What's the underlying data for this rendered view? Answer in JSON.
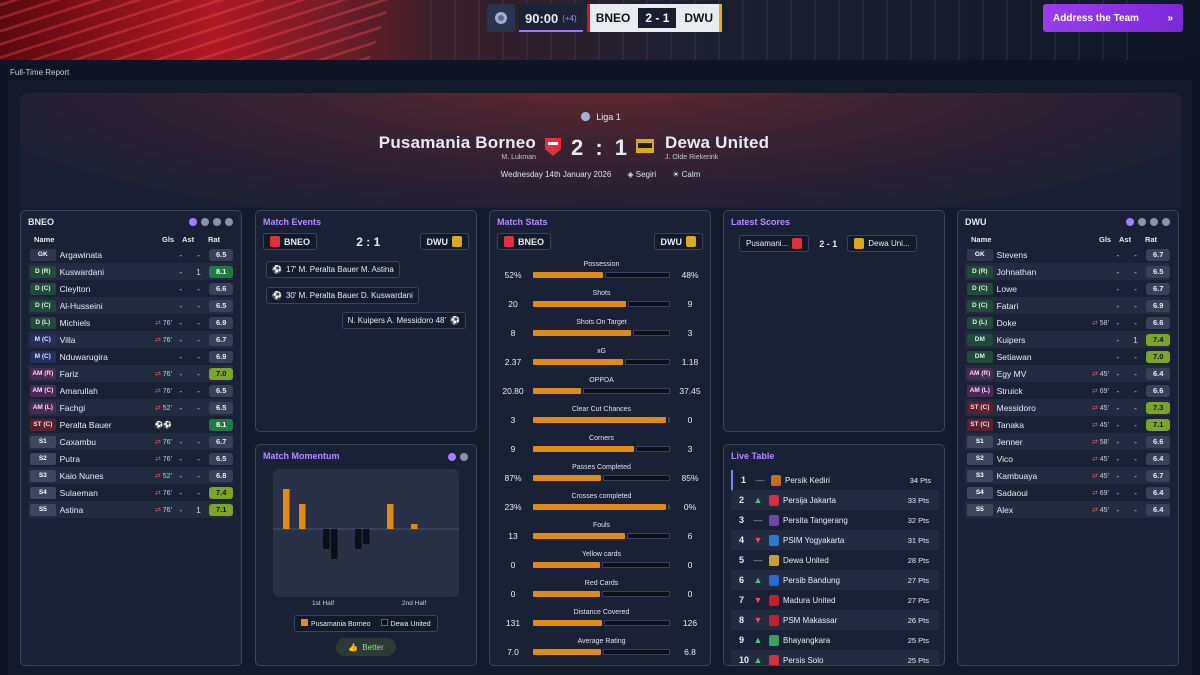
{
  "topbar": {
    "clock": "90:00",
    "added": "(+4)",
    "home_abbr": "BNEO",
    "score": "2 - 1",
    "away_abbr": "DWU",
    "action_button": "Address the Team"
  },
  "page_title": "Full-Time Report",
  "header": {
    "competition": "Liga 1",
    "home_team": "Pusamania Borneo",
    "home_manager": "M. Lukman",
    "score": "2 : 1",
    "away_team": "Dewa United",
    "away_manager": "J. Olde Riekerink",
    "date": "Wednesday 14th January 2026",
    "stadium": "Segiri",
    "weather": "Calm"
  },
  "home_panel": {
    "title": "BNEO",
    "col_name": "Name",
    "col_gls": "Gls",
    "col_ast": "Ast",
    "col_rat": "Rat",
    "players": [
      {
        "pos": "GK",
        "cls": "g",
        "name": "Argawinata",
        "sub": "",
        "gls": "-",
        "ast": "-",
        "rat": "6.5",
        "rc": ""
      },
      {
        "pos": "D (R)",
        "cls": "d",
        "name": "Kuswardani",
        "sub": "",
        "gls": "-",
        "ast": "1",
        "rat": "8.1",
        "rc": "r-green"
      },
      {
        "pos": "D (C)",
        "cls": "d",
        "name": "Cleylton",
        "sub": "",
        "gls": "-",
        "ast": "-",
        "rat": "6.6",
        "rc": ""
      },
      {
        "pos": "D (C)",
        "cls": "d",
        "name": "Al-Husseini",
        "sub": "",
        "gls": "-",
        "ast": "-",
        "rat": "6.5",
        "rc": ""
      },
      {
        "pos": "D (L)",
        "cls": "d",
        "name": "Michiels",
        "sub": "76'",
        "gls": "-",
        "ast": "-",
        "rat": "6.9",
        "rc": ""
      },
      {
        "pos": "M (C)",
        "cls": "m",
        "name": "Villa",
        "sub": "76'",
        "gls": "-",
        "ast": "-",
        "rat": "6.7",
        "rc": ""
      },
      {
        "pos": "M (C)",
        "cls": "m",
        "name": "Nduwarugira",
        "sub": "",
        "gls": "-",
        "ast": "-",
        "rat": "6.9",
        "rc": ""
      },
      {
        "pos": "AM (R)",
        "cls": "a",
        "name": "Fariz",
        "sub": "76'",
        "gls": "-",
        "ast": "-",
        "rat": "7.0",
        "rc": "r-lime"
      },
      {
        "pos": "AM (C)",
        "cls": "a",
        "name": "Amarullah",
        "sub": "76'",
        "gls": "-",
        "ast": "-",
        "rat": "6.5",
        "rc": ""
      },
      {
        "pos": "AM (L)",
        "cls": "a",
        "name": "Fachgi",
        "sub": "52'",
        "gls": "-",
        "ast": "-",
        "rat": "6.5",
        "rc": ""
      },
      {
        "pos": "ST (C)",
        "cls": "st",
        "name": "Peralta Bauer",
        "sub": "⚽⚽",
        "gls": "",
        "ast": "",
        "rat": "8.1",
        "rc": "r-green"
      },
      {
        "pos": "S1",
        "cls": "s",
        "name": "Caxambu",
        "sub": "76'",
        "gls": "-",
        "ast": "-",
        "rat": "6.7",
        "rc": ""
      },
      {
        "pos": "S2",
        "cls": "s",
        "name": "Putra",
        "sub": "76'",
        "gls": "-",
        "ast": "-",
        "rat": "6.5",
        "rc": ""
      },
      {
        "pos": "S3",
        "cls": "s",
        "name": "Kaio Nunes",
        "sub": "52'",
        "gls": "-",
        "ast": "-",
        "rat": "6.8",
        "rc": ""
      },
      {
        "pos": "S4",
        "cls": "s",
        "name": "Sulaeman",
        "sub": "76'",
        "gls": "-",
        "ast": "-",
        "rat": "7.4",
        "rc": "r-lime"
      },
      {
        "pos": "S5",
        "cls": "s",
        "name": "Astina",
        "sub": "76'",
        "gls": "-",
        "ast": "1",
        "rat": "7.1",
        "rc": "r-lime"
      }
    ]
  },
  "away_panel": {
    "title": "DWU",
    "col_name": "Name",
    "col_gls": "Gls",
    "col_ast": "Ast",
    "col_rat": "Rat",
    "players": [
      {
        "pos": "GK",
        "cls": "g",
        "name": "Stevens",
        "sub": "",
        "gls": "-",
        "ast": "-",
        "rat": "6.7",
        "rc": ""
      },
      {
        "pos": "D (R)",
        "cls": "d",
        "name": "Johnathan",
        "sub": "",
        "gls": "-",
        "ast": "-",
        "rat": "6.5",
        "rc": ""
      },
      {
        "pos": "D (C)",
        "cls": "d",
        "name": "Lowe",
        "sub": "",
        "gls": "-",
        "ast": "-",
        "rat": "6.7",
        "rc": ""
      },
      {
        "pos": "D (C)",
        "cls": "d",
        "name": "Fatari",
        "sub": "",
        "gls": "-",
        "ast": "-",
        "rat": "6.9",
        "rc": ""
      },
      {
        "pos": "D (L)",
        "cls": "d",
        "name": "Doke",
        "sub": "58'",
        "gls": "-",
        "ast": "-",
        "rat": "6.6",
        "rc": ""
      },
      {
        "pos": "DM",
        "cls": "d",
        "name": "Kuipers",
        "sub": "",
        "gls": "-",
        "ast": "1",
        "rat": "7.4",
        "rc": "r-lime"
      },
      {
        "pos": "DM",
        "cls": "d",
        "name": "Setiawan",
        "sub": "",
        "gls": "-",
        "ast": "-",
        "rat": "7.0",
        "rc": "r-lime"
      },
      {
        "pos": "AM (R)",
        "cls": "a",
        "name": "Egy MV",
        "sub": "45'",
        "gls": "-",
        "ast": "-",
        "rat": "6.4",
        "rc": ""
      },
      {
        "pos": "AM (L)",
        "cls": "a",
        "name": "Struick",
        "sub": "69'",
        "gls": "-",
        "ast": "-",
        "rat": "6.6",
        "rc": ""
      },
      {
        "pos": "ST (C)",
        "cls": "st",
        "name": "Messidoro",
        "sub": "45'",
        "gls": "-",
        "ast": "-",
        "rat": "7.3",
        "rc": "r-lime"
      },
      {
        "pos": "ST (C)",
        "cls": "st",
        "name": "Tanaka",
        "sub": "45'",
        "gls": "-",
        "ast": "-",
        "rat": "7.1",
        "rc": "r-lime"
      },
      {
        "pos": "S1",
        "cls": "s",
        "name": "Jenner",
        "sub": "58'",
        "gls": "-",
        "ast": "-",
        "rat": "6.6",
        "rc": ""
      },
      {
        "pos": "S2",
        "cls": "s",
        "name": "Vico",
        "sub": "45'",
        "gls": "-",
        "ast": "-",
        "rat": "6.4",
        "rc": ""
      },
      {
        "pos": "S3",
        "cls": "s",
        "name": "Kambuaya",
        "sub": "45'",
        "gls": "-",
        "ast": "-",
        "rat": "6.7",
        "rc": ""
      },
      {
        "pos": "S4",
        "cls": "s",
        "name": "Sadaoui",
        "sub": "69'",
        "gls": "-",
        "ast": "-",
        "rat": "6.4",
        "rc": ""
      },
      {
        "pos": "S5",
        "cls": "s",
        "name": "Alex",
        "sub": "45'",
        "gls": "-",
        "ast": "-",
        "rat": "6.4",
        "rc": ""
      }
    ]
  },
  "match_events": {
    "title": "Match Events",
    "home": "BNEO",
    "score": "2 : 1",
    "away": "DWU",
    "events": [
      {
        "text": "17'  M. Peralta Bauer  M. Astina",
        "side": "home"
      },
      {
        "text": "30'  M. Peralta Bauer  D. Kuswardani",
        "side": "home"
      },
      {
        "text": "N. Kuipers  A. Messidoro  48'",
        "side": "away"
      }
    ]
  },
  "match_stats": {
    "title": "Match Stats",
    "home": "BNEO",
    "away": "DWU",
    "stats": [
      {
        "label": "Possession",
        "home": "52%",
        "away": "48%",
        "h": 52,
        "a": 48
      },
      {
        "label": "Shots",
        "home": "20",
        "away": "9",
        "h": 20,
        "a": 9
      },
      {
        "label": "Shots On Target",
        "home": "8",
        "away": "3",
        "h": 8,
        "a": 3
      },
      {
        "label": "xG",
        "home": "2.37",
        "away": "1.18",
        "h": 2.37,
        "a": 1.18
      },
      {
        "label": "OPPDA",
        "home": "20.80",
        "away": "37.45",
        "h": 20.8,
        "a": 37.45
      },
      {
        "label": "Clear Cut Chances",
        "home": "3",
        "away": "0",
        "h": 3,
        "a": 0
      },
      {
        "label": "Corners",
        "home": "9",
        "away": "3",
        "h": 9,
        "a": 3
      },
      {
        "label": "Passes Completed",
        "home": "87%",
        "away": "85%",
        "h": 87,
        "a": 85
      },
      {
        "label": "Crosses completed",
        "home": "23%",
        "away": "0%",
        "h": 23,
        "a": 0
      },
      {
        "label": "Fouls",
        "home": "13",
        "away": "6",
        "h": 13,
        "a": 6
      },
      {
        "label": "Yellow cards",
        "home": "0",
        "away": "0",
        "h": 0,
        "a": 0
      },
      {
        "label": "Red Cards",
        "home": "0",
        "away": "0",
        "h": 0,
        "a": 0
      },
      {
        "label": "Distance Covered",
        "home": "131",
        "away": "126",
        "h": 131,
        "a": 126
      },
      {
        "label": "Average Rating",
        "home": "7.0",
        "away": "6.8",
        "h": 7.0,
        "a": 6.8
      }
    ]
  },
  "latest_scores": {
    "title": "Latest Scores",
    "home": "Pusamani...",
    "score": "2 - 1",
    "away": "Dewa Uni..."
  },
  "momentum": {
    "title": "Match Momentum",
    "first_half": "1st Half",
    "second_half": "2nd Half",
    "legend_home": "Pusamania Borneo",
    "legend_away": "Dewa United",
    "better_label": "Better",
    "bars": [
      40,
      0,
      25,
      0,
      0,
      -20,
      -30,
      0,
      0,
      -20,
      -15,
      0,
      0,
      25,
      0,
      0,
      5,
      0,
      0,
      0
    ],
    "home_color": "#e08a18",
    "away_color": "#0c0f18"
  },
  "live_table": {
    "title": "Live Table",
    "rows": [
      {
        "pos": "1",
        "arrow": "—",
        "team": "Persik Kediri",
        "pts": "34 Pts",
        "col": "#c0701a"
      },
      {
        "pos": "2",
        "arrow": "▲",
        "team": "Persija Jakarta",
        "pts": "33 Pts",
        "col": "#d03040"
      },
      {
        "pos": "3",
        "arrow": "—",
        "team": "Persita Tangerang",
        "pts": "32 Pts",
        "col": "#6a4aa0"
      },
      {
        "pos": "4",
        "arrow": "▼",
        "team": "PSIM Yogyakarta",
        "pts": "31 Pts",
        "col": "#2a7ad0"
      },
      {
        "pos": "5",
        "arrow": "—",
        "team": "Dewa United",
        "pts": "28 Pts",
        "col": "#c8a030"
      },
      {
        "pos": "6",
        "arrow": "▲",
        "team": "Persib Bandung",
        "pts": "27 Pts",
        "col": "#2a6ad0"
      },
      {
        "pos": "7",
        "arrow": "▼",
        "team": "Madura United",
        "pts": "27 Pts",
        "col": "#c02030"
      },
      {
        "pos": "8",
        "arrow": "▼",
        "team": "PSM Makassar",
        "pts": "26 Pts",
        "col": "#c02030"
      },
      {
        "pos": "9",
        "arrow": "▲",
        "team": "Bhayangkara",
        "pts": "25 Pts",
        "col": "#3aa060"
      },
      {
        "pos": "10",
        "arrow": "▲",
        "team": "Persis Solo",
        "pts": "25 Pts",
        "col": "#d03040"
      }
    ]
  }
}
